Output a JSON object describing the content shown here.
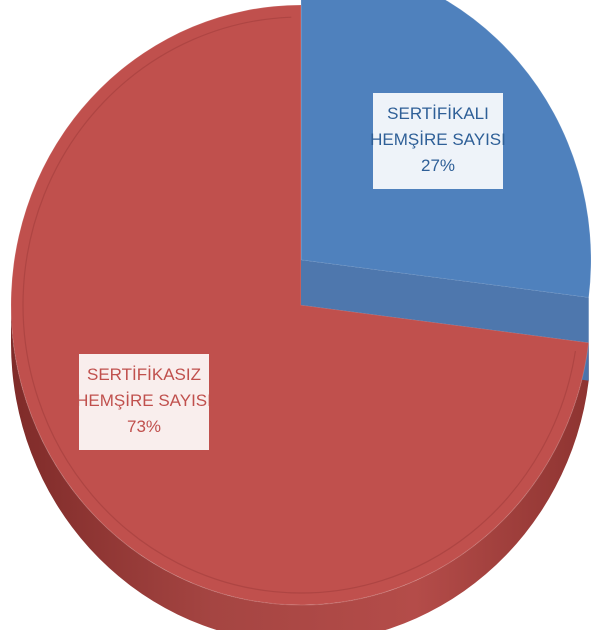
{
  "chart_data": {
    "type": "pie",
    "title": "",
    "legend": "none",
    "slices": [
      {
        "label_lines": [
          "SERTİFİKALI",
          "HEMŞİRE SAYISI"
        ],
        "percent_label": "27%",
        "value": 27,
        "color": "#4f81bd",
        "label_color": "#2e5f97"
      },
      {
        "label_lines": [
          "SERTİFİKASIZ",
          "HEMŞİRE SAYISI"
        ],
        "percent_label": "73%",
        "value": 73,
        "color": "#c0504d",
        "label_color": "#c0504d"
      }
    ]
  }
}
